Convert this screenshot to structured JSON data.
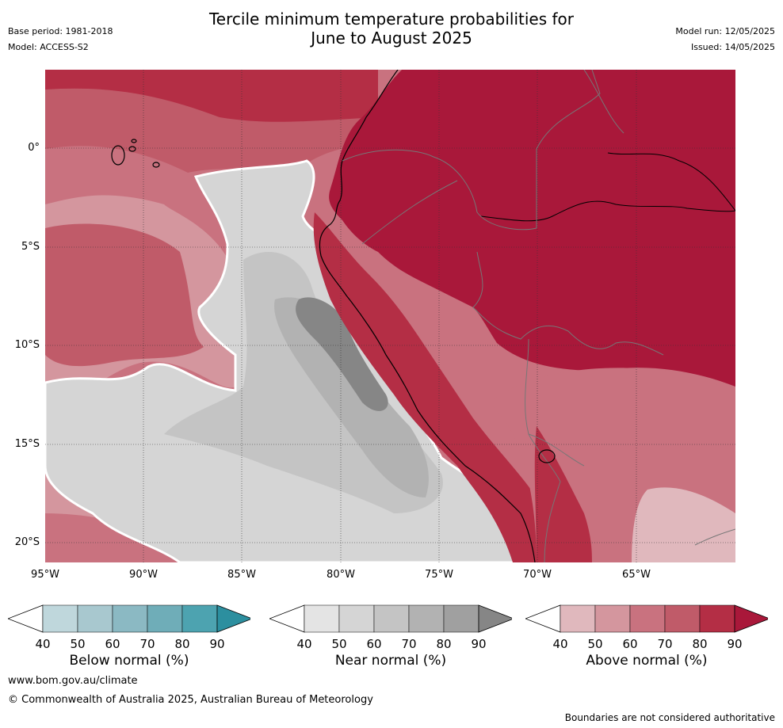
{
  "title_line1": "Tercile minimum temperature probabilities for",
  "title_line2": "June to August 2025",
  "base_period": "Base period: 1981-2018",
  "model": "Model: ACCESS-S2",
  "model_run": "Model run: 12/05/2025",
  "issued": "Issued: 14/05/2025",
  "lat_labels": [
    "0°",
    "5°S",
    "10°S",
    "15°S",
    "20°S"
  ],
  "lon_labels": [
    "95°W",
    "90°W",
    "85°W",
    "80°W",
    "75°W",
    "70°W",
    "65°W"
  ],
  "colorbars": [
    {
      "label": "Below normal (%)",
      "ticks": [
        "40",
        "50",
        "60",
        "70",
        "80",
        "90"
      ],
      "colors": [
        "#bfd7dc",
        "#a8c8cf",
        "#8bb9c3",
        "#6fadb8",
        "#4da3b0",
        "#2c8f9f"
      ]
    },
    {
      "label": "Near normal (%)",
      "ticks": [
        "40",
        "50",
        "60",
        "70",
        "80",
        "90"
      ],
      "colors": [
        "#e4e4e4",
        "#d5d5d5",
        "#c4c4c4",
        "#b2b2b2",
        "#a0a0a0",
        "#868686"
      ]
    },
    {
      "label": "Above normal (%)",
      "ticks": [
        "40",
        "50",
        "60",
        "70",
        "80",
        "90"
      ],
      "colors": [
        "#e0b8bd",
        "#d4969e",
        "#c9727f",
        "#c05b69",
        "#b42e45",
        "#a9183a"
      ]
    }
  ],
  "footer_url": "www.bom.gov.au/climate",
  "copyright": "© Commonwealth of Australia 2025, Australian Bureau of Meteorology",
  "disclaimer": "Boundaries are not considered authoritative"
}
